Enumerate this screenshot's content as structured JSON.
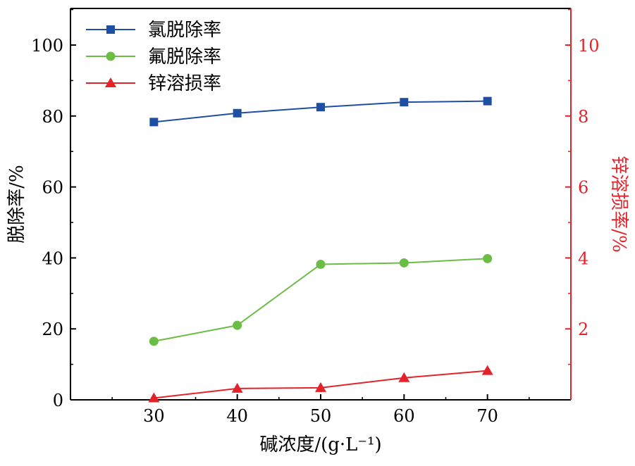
{
  "chart_data": {
    "type": "line",
    "xlabel": "碱浓度/(g·L⁻¹)",
    "ylabel_left": "脱除率/%",
    "ylabel_right": "锌溶损率/%",
    "x": [
      30,
      40,
      50,
      60,
      70
    ],
    "xticks": [
      "30",
      "40",
      "50",
      "60",
      "70"
    ],
    "xlim": [
      20,
      80
    ],
    "ylim_left": [
      0,
      100
    ],
    "yticks_left": [
      "0",
      "20",
      "40",
      "60",
      "80",
      "100"
    ],
    "ylim_right": [
      0,
      10
    ],
    "yticks_right": [
      "2",
      "4",
      "6",
      "8",
      "10"
    ],
    "grid": false,
    "legend_position": "top-left",
    "series": [
      {
        "name": "氯脱除率",
        "axis": "left",
        "marker": "square",
        "color": "#1f4fa3",
        "values": [
          78.3,
          80.8,
          82.5,
          83.9,
          84.2
        ]
      },
      {
        "name": "氟脱除率",
        "axis": "left",
        "marker": "circle",
        "color": "#6cbd45",
        "values": [
          16.5,
          21.0,
          38.2,
          38.6,
          39.8
        ]
      },
      {
        "name": "锌溶损率",
        "axis": "right",
        "marker": "triangle",
        "color": "#e3232a",
        "values": [
          0.05,
          0.32,
          0.34,
          0.62,
          0.82
        ]
      }
    ],
    "colors": {
      "axis": "#000000",
      "right_axis": "#e3232a"
    }
  }
}
